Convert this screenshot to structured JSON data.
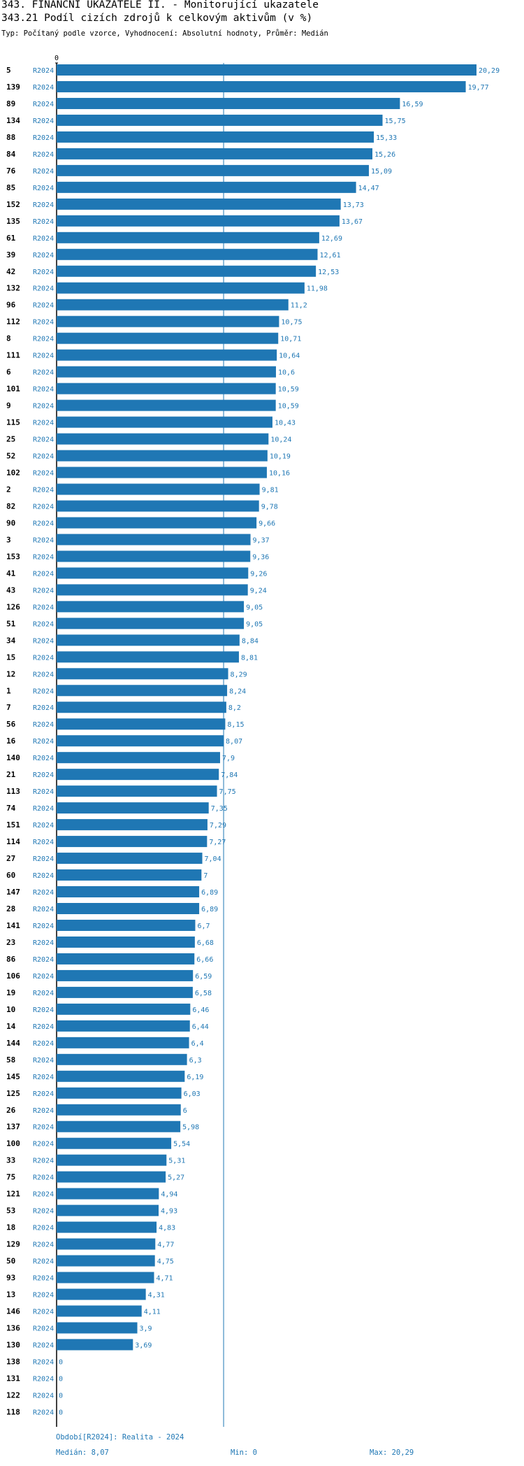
{
  "header": {
    "title1": "343. FINANČNÍ UKAZATELE II. - Monitorující ukazatele",
    "title2": "343.21 Podíl cizích zdrojů k celkovým aktivům (v %)",
    "subtitle": "Typ: Počítaný podle vzorce, Vyhodnocení: Absolutní hodnoty, Průměr: Medián"
  },
  "chart_data": {
    "type": "bar",
    "orientation": "horizontal",
    "axis_zero_label": "0",
    "period_label": "R2024",
    "median": 8.07,
    "xlim": [
      0,
      20.29
    ],
    "categories": [
      "5",
      "139",
      "89",
      "134",
      "88",
      "84",
      "76",
      "85",
      "152",
      "135",
      "61",
      "39",
      "42",
      "132",
      "96",
      "112",
      "8",
      "111",
      "6",
      "101",
      "9",
      "115",
      "25",
      "52",
      "102",
      "2",
      "82",
      "90",
      "3",
      "153",
      "41",
      "43",
      "126",
      "51",
      "34",
      "15",
      "12",
      "1",
      "7",
      "56",
      "16",
      "140",
      "21",
      "113",
      "74",
      "151",
      "114",
      "27",
      "60",
      "147",
      "28",
      "141",
      "23",
      "86",
      "106",
      "19",
      "10",
      "14",
      "144",
      "58",
      "145",
      "125",
      "26",
      "137",
      "100",
      "33",
      "75",
      "121",
      "53",
      "18",
      "129",
      "50",
      "93",
      "13",
      "146",
      "136",
      "130",
      "138",
      "131",
      "122",
      "118"
    ],
    "values": [
      20.29,
      19.77,
      16.59,
      15.75,
      15.33,
      15.26,
      15.09,
      14.47,
      13.73,
      13.67,
      12.69,
      12.61,
      12.53,
      11.98,
      11.2,
      10.75,
      10.71,
      10.64,
      10.6,
      10.59,
      10.59,
      10.43,
      10.24,
      10.19,
      10.16,
      9.81,
      9.78,
      9.66,
      9.37,
      9.36,
      9.26,
      9.24,
      9.05,
      9.05,
      8.84,
      8.81,
      8.29,
      8.24,
      8.2,
      8.15,
      8.07,
      7.9,
      7.84,
      7.75,
      7.35,
      7.29,
      7.27,
      7.04,
      7,
      6.89,
      6.89,
      6.7,
      6.68,
      6.66,
      6.59,
      6.58,
      6.46,
      6.44,
      6.4,
      6.3,
      6.19,
      6.03,
      6,
      5.98,
      5.54,
      5.31,
      5.27,
      4.94,
      4.93,
      4.83,
      4.77,
      4.75,
      4.71,
      4.31,
      4.11,
      3.9,
      3.69,
      0,
      0,
      0,
      0
    ],
    "value_labels": [
      "20,29",
      "19,77",
      "16,59",
      "15,75",
      "15,33",
      "15,26",
      "15,09",
      "14,47",
      "13,73",
      "13,67",
      "12,69",
      "12,61",
      "12,53",
      "11,98",
      "11,2",
      "10,75",
      "10,71",
      "10,64",
      "10,6",
      "10,59",
      "10,59",
      "10,43",
      "10,24",
      "10,19",
      "10,16",
      "9,81",
      "9,78",
      "9,66",
      "9,37",
      "9,36",
      "9,26",
      "9,24",
      "9,05",
      "9,05",
      "8,84",
      "8,81",
      "8,29",
      "8,24",
      "8,2",
      "8,15",
      "8,07",
      "7,9",
      "7,84",
      "7,75",
      "7,35",
      "7,29",
      "7,27",
      "7,04",
      "7",
      "6,89",
      "6,89",
      "6,7",
      "6,68",
      "6,66",
      "6,59",
      "6,58",
      "6,46",
      "6,44",
      "6,4",
      "6,3",
      "6,19",
      "6,03",
      "6",
      "5,98",
      "5,54",
      "5,31",
      "5,27",
      "4,94",
      "4,93",
      "4,83",
      "4,77",
      "4,75",
      "4,71",
      "4,31",
      "4,11",
      "3,9",
      "3,69",
      "0",
      "0",
      "0",
      "0"
    ],
    "bar_color": "#1f77b4",
    "label_color": "#1f77b4"
  },
  "footer": {
    "period": "Období[R2024]: Realita - 2024",
    "median": "Medián: 8,07",
    "min": "Min: 0",
    "max": "Max: 20,29"
  }
}
